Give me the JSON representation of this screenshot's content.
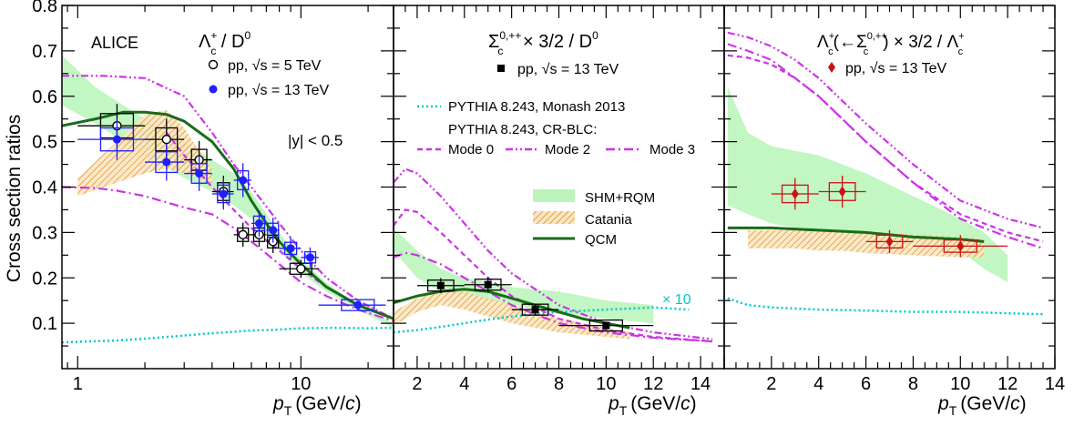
{
  "figure": {
    "ylabel": "Cross section ratios",
    "xlabel_p": "p",
    "xlabel_sub": "T",
    "xlabel_units_a": "(GeV/",
    "xlabel_units_c": "c",
    "xlabel_units_b": ")",
    "experiment": "ALICE"
  },
  "colors": {
    "pp5": "#000000",
    "pp13_left": "#1f1fff",
    "pp13_mid": "#000000",
    "pp13_right": "#cc1111",
    "pythia_monash": "#00c8c8",
    "cr_blc": "#cc33e6",
    "shm": "#90ee90",
    "catania": "#e0a040",
    "qcm": "#1a6b1a"
  },
  "chart_data": [
    {
      "type": "scatter",
      "panel": "left",
      "title_main": "Λ",
      "title_sup": "+",
      "title_sub": "c",
      "title_rest": " / D",
      "title_rest_sup": "0",
      "xscale": "log",
      "xlim": [
        0.85,
        26
      ],
      "ylim": [
        0.0,
        0.8
      ],
      "xticks": [
        1,
        10
      ],
      "yticks": [
        0.1,
        0.2,
        0.3,
        0.4,
        0.5,
        0.6,
        0.7,
        0.8
      ],
      "annotation": "|y| < 0.5",
      "legend_pp5": "pp, √s = 5 TeV",
      "legend_pp13": "pp, √s = 13 TeV",
      "series": [
        {
          "name": "pp, √s = 5 TeV",
          "marker": "open-circle",
          "x": [
            1.5,
            2.5,
            3.5,
            4.5,
            5.5,
            6.5,
            7.5,
            10
          ],
          "y": [
            0.535,
            0.505,
            0.46,
            0.39,
            0.295,
            0.295,
            0.28,
            0.22
          ],
          "xerr": [
            0.5,
            0.5,
            0.5,
            0.5,
            0.5,
            0.5,
            0.5,
            2.0
          ]
        },
        {
          "name": "pp, √s = 13 TeV",
          "marker": "filled-circle",
          "x": [
            1.5,
            2.5,
            3.5,
            4.5,
            5.5,
            6.5,
            7.5,
            9,
            11,
            18
          ],
          "y": [
            0.505,
            0.455,
            0.43,
            0.385,
            0.415,
            0.32,
            0.305,
            0.265,
            0.245,
            0.14
          ],
          "xerr": [
            0.5,
            0.5,
            0.5,
            0.5,
            0.5,
            0.5,
            0.5,
            1.0,
            1.0,
            6.0
          ]
        }
      ],
      "models": {
        "shm_band": {
          "x": [
            0.85,
            1.2,
            1.6,
            2,
            3,
            4,
            5,
            6,
            8,
            10,
            13,
            18,
            26
          ],
          "upper": [
            0.69,
            0.62,
            0.58,
            0.55,
            0.5,
            0.46,
            0.43,
            0.39,
            0.3,
            0.24,
            0.19,
            0.14,
            0.1
          ],
          "lower": [
            0.58,
            0.54,
            0.5,
            0.47,
            0.42,
            0.39,
            0.36,
            0.33,
            0.26,
            0.21,
            0.17,
            0.13,
            0.09
          ]
        },
        "catania_band": {
          "x": [
            1.0,
            1.5,
            2,
            2.5,
            3,
            3.5,
            4
          ],
          "upper": [
            0.42,
            0.5,
            0.56,
            0.57,
            0.53,
            0.48,
            0.44
          ],
          "lower": [
            0.38,
            0.41,
            0.43,
            0.44,
            0.43,
            0.42,
            0.4
          ]
        },
        "qcm": {
          "x": [
            0.85,
            1.2,
            1.6,
            2,
            2.5,
            3,
            4,
            5,
            6,
            7,
            8,
            10,
            13,
            18,
            26
          ],
          "y": [
            0.535,
            0.55,
            0.565,
            0.565,
            0.56,
            0.545,
            0.5,
            0.44,
            0.37,
            0.32,
            0.28,
            0.23,
            0.18,
            0.14,
            0.11
          ]
        },
        "monash": {
          "x": [
            0.85,
            1.5,
            2,
            3,
            4,
            6,
            8,
            10,
            14,
            20,
            26
          ],
          "y": [
            0.058,
            0.062,
            0.066,
            0.073,
            0.078,
            0.084,
            0.086,
            0.089,
            0.09,
            0.089,
            0.09
          ]
        },
        "mode0": {
          "x": [
            2.5,
            3,
            4,
            5,
            6,
            8,
            10,
            13,
            18,
            26
          ],
          "y": [
            0.52,
            0.47,
            0.4,
            0.35,
            0.31,
            0.26,
            0.22,
            0.18,
            0.14,
            0.11
          ]
        },
        "mode2": {
          "x": [
            0.85,
            1.3,
            2,
            3,
            4,
            5,
            6,
            8,
            10,
            13,
            18,
            26
          ],
          "y": [
            0.645,
            0.645,
            0.64,
            0.6,
            0.52,
            0.45,
            0.4,
            0.32,
            0.26,
            0.2,
            0.15,
            0.11
          ]
        },
        "mode3": {
          "x": [
            0.85,
            1.2,
            1.5,
            2,
            3,
            4,
            5,
            6,
            8,
            10,
            13,
            18,
            26
          ],
          "y": [
            0.4,
            0.398,
            0.392,
            0.38,
            0.355,
            0.34,
            0.31,
            0.28,
            0.23,
            0.19,
            0.16,
            0.13,
            0.105
          ]
        }
      }
    },
    {
      "type": "scatter",
      "panel": "middle",
      "title_main": "Σ",
      "title_sup": "0,++",
      "title_sub": "c",
      "title_rest": " × 3/2 / D",
      "title_rest_sup": "0",
      "xscale": "linear",
      "xlim": [
        1,
        15
      ],
      "ylim": [
        0.0,
        0.8
      ],
      "xticks": [
        2,
        4,
        6,
        8,
        10,
        12,
        14
      ],
      "legend_pp13": "pp, √s = 13 TeV",
      "legend_monash": "PYTHIA 8.243, Monash 2013",
      "legend_crblc": "PYTHIA 8.243, CR-BLC:",
      "legend_mode0": "Mode 0",
      "legend_mode2": "Mode 2",
      "legend_mode3": "Mode 3",
      "legend_shm": "SHM+RQM",
      "legend_catania": "Catania",
      "legend_qcm": "QCM",
      "monash_scale_label": "× 10",
      "series": [
        {
          "name": "pp, √s = 13 TeV",
          "marker": "filled-square",
          "x": [
            3,
            5,
            7,
            10
          ],
          "y": [
            0.183,
            0.185,
            0.13,
            0.095
          ],
          "xerr": [
            1,
            1,
            1,
            2
          ]
        }
      ],
      "models": {
        "shm_band": {
          "x": [
            1,
            2,
            3,
            4,
            5,
            6,
            8,
            10,
            12
          ],
          "upper": [
            0.31,
            0.26,
            0.22,
            0.2,
            0.19,
            0.18,
            0.17,
            0.15,
            0.14
          ],
          "lower": [
            0.26,
            0.2,
            0.17,
            0.16,
            0.15,
            0.14,
            0.12,
            0.11,
            0.1
          ]
        },
        "catania_band": {
          "x": [
            1,
            2,
            3,
            4,
            5,
            6,
            8,
            10,
            11
          ],
          "upper": [
            0.125,
            0.155,
            0.175,
            0.17,
            0.155,
            0.14,
            0.11,
            0.09,
            0.08
          ],
          "lower": [
            0.095,
            0.125,
            0.14,
            0.13,
            0.115,
            0.1,
            0.08,
            0.07,
            0.065
          ]
        },
        "qcm": {
          "x": [
            1,
            2,
            3,
            4,
            5,
            6,
            7,
            8,
            9,
            10,
            11
          ],
          "y": [
            0.145,
            0.16,
            0.17,
            0.175,
            0.17,
            0.155,
            0.14,
            0.125,
            0.11,
            0.1,
            0.09
          ]
        },
        "monash_x10": {
          "x": [
            1,
            2,
            3,
            4,
            5,
            6,
            8,
            10,
            12,
            13.5
          ],
          "y": [
            0.08,
            0.085,
            0.092,
            0.1,
            0.108,
            0.115,
            0.125,
            0.13,
            0.135,
            0.13
          ]
        },
        "mode0": {
          "x": [
            1,
            1.5,
            2,
            3,
            4,
            5,
            6,
            8,
            10,
            12,
            14.5
          ],
          "y": [
            0.315,
            0.35,
            0.345,
            0.3,
            0.25,
            0.2,
            0.16,
            0.11,
            0.085,
            0.07,
            0.06
          ]
        },
        "mode2": {
          "x": [
            1,
            1.5,
            2,
            3,
            4,
            5,
            6,
            8,
            10,
            12,
            14.5
          ],
          "y": [
            0.41,
            0.44,
            0.43,
            0.38,
            0.32,
            0.26,
            0.21,
            0.14,
            0.1,
            0.08,
            0.065
          ]
        },
        "mode3": {
          "x": [
            1,
            1.5,
            2,
            3,
            4,
            5,
            6,
            8,
            10,
            12,
            14.5
          ],
          "y": [
            0.245,
            0.255,
            0.25,
            0.23,
            0.2,
            0.17,
            0.14,
            0.1,
            0.08,
            0.068,
            0.06
          ]
        }
      }
    },
    {
      "type": "scatter",
      "panel": "right",
      "title_main": "Λ",
      "title_sup": "+",
      "title_sub": "c",
      "title_rest": "(←Σ",
      "title_rest_sup": "0,++",
      "title_rest_sub": "c",
      "title_tail": ") × 3/2 / Λ",
      "title_tail_sup": "+",
      "title_tail_sub": "c",
      "xscale": "linear",
      "xlim": [
        0,
        14
      ],
      "ylim": [
        0.0,
        0.8
      ],
      "xticks": [
        2,
        4,
        6,
        8,
        10,
        12,
        14
      ],
      "legend_pp13": "pp, √s = 13 TeV",
      "series": [
        {
          "name": "pp, √s = 13 TeV",
          "marker": "filled-diamond",
          "x": [
            3,
            5,
            7,
            10
          ],
          "y": [
            0.385,
            0.39,
            0.28,
            0.27
          ],
          "xerr": [
            1,
            1,
            1,
            2
          ]
        }
      ],
      "models": {
        "shm_band": {
          "x": [
            0.15,
            1,
            2,
            3,
            4,
            5,
            6,
            8,
            10,
            11,
            12
          ],
          "upper": [
            0.62,
            0.52,
            0.49,
            0.48,
            0.47,
            0.45,
            0.43,
            0.38,
            0.33,
            0.3,
            0.25
          ],
          "lower": [
            0.36,
            0.34,
            0.32,
            0.31,
            0.3,
            0.3,
            0.29,
            0.28,
            0.26,
            0.22,
            0.19
          ]
        },
        "catania_band": {
          "x": [
            1,
            2,
            3,
            4,
            5,
            6,
            8,
            10,
            11
          ],
          "upper": [
            0.305,
            0.305,
            0.305,
            0.305,
            0.305,
            0.3,
            0.295,
            0.29,
            0.285
          ],
          "lower": [
            0.265,
            0.265,
            0.265,
            0.26,
            0.26,
            0.255,
            0.25,
            0.245,
            0.245
          ]
        },
        "qcm": {
          "x": [
            0.15,
            2,
            4,
            6,
            8,
            10,
            11
          ],
          "y": [
            0.31,
            0.31,
            0.305,
            0.3,
            0.29,
            0.285,
            0.28
          ]
        },
        "monash_x10": {
          "x": [
            0.15,
            1,
            2,
            4,
            6,
            8,
            10,
            12,
            13.5
          ],
          "y": [
            0.155,
            0.14,
            0.135,
            0.13,
            0.128,
            0.125,
            0.125,
            0.122,
            0.12
          ]
        },
        "mode0": {
          "x": [
            0.15,
            1,
            2,
            3,
            4,
            5,
            6,
            8,
            10,
            12,
            13.5
          ],
          "y": [
            0.69,
            0.685,
            0.67,
            0.64,
            0.6,
            0.55,
            0.5,
            0.41,
            0.34,
            0.3,
            0.28
          ]
        },
        "mode2": {
          "x": [
            0.15,
            1,
            2,
            3,
            4,
            5,
            6,
            8,
            10,
            12,
            13.5
          ],
          "y": [
            0.74,
            0.73,
            0.71,
            0.68,
            0.64,
            0.59,
            0.54,
            0.45,
            0.37,
            0.33,
            0.31
          ]
        },
        "mode3": {
          "x": [
            0.15,
            1,
            2,
            3,
            4,
            5,
            6,
            8,
            10,
            12,
            13.5
          ],
          "y": [
            0.715,
            0.7,
            0.68,
            0.64,
            0.6,
            0.55,
            0.5,
            0.41,
            0.33,
            0.29,
            0.265
          ]
        }
      }
    }
  ]
}
